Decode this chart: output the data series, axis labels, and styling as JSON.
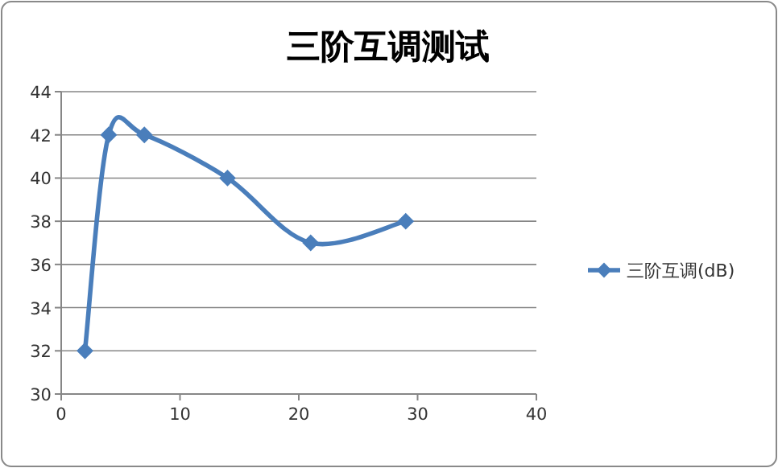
{
  "chart_data": {
    "type": "line",
    "title": "三阶互调测试",
    "x": [
      2,
      4,
      7,
      14,
      21,
      29
    ],
    "series": [
      {
        "name": "三阶互调(dB)",
        "color": "#4a7ebb",
        "values": [
          32,
          42,
          42,
          40,
          37,
          38
        ]
      }
    ],
    "xlim": [
      0,
      40
    ],
    "xticks": [
      0,
      10,
      20,
      30,
      40
    ],
    "ylim": [
      30,
      44
    ],
    "yticks": [
      30,
      32,
      34,
      36,
      38,
      40,
      42,
      44
    ],
    "grid": "y",
    "legend": "right",
    "marker": "diamond",
    "line_style": "solid"
  }
}
